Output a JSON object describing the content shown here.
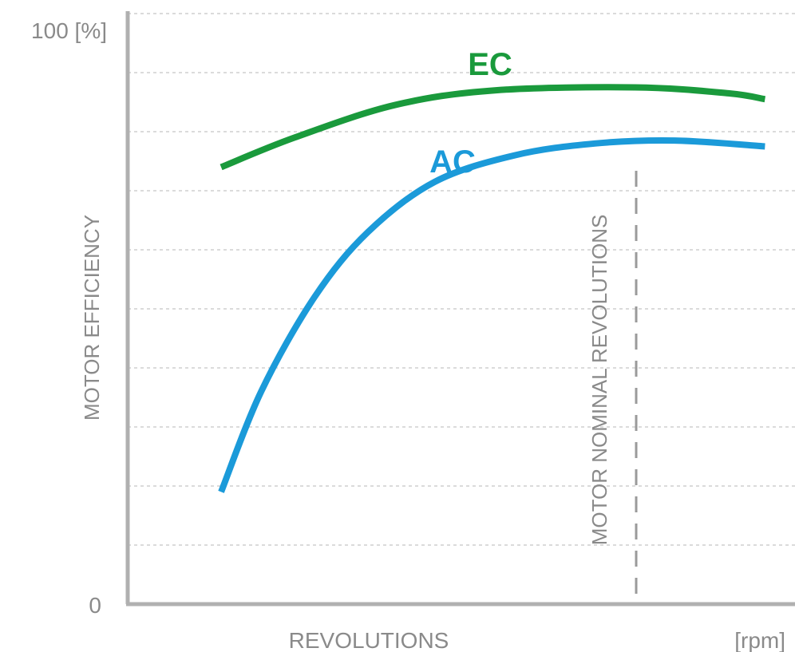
{
  "chart_data": {
    "type": "line",
    "title": "",
    "xlabel": "REVOLUTIONS",
    "xunit": "[rpm]",
    "ylabel": "MOTOR EFFICIENCY",
    "y_top_label": "100 [%]",
    "y_bottom_label": "0",
    "ylim": [
      0,
      100
    ],
    "xlim": [
      0,
      100
    ],
    "grid": true,
    "gridlines_y": [
      10,
      20,
      30,
      40,
      50,
      60,
      70,
      80,
      90
    ],
    "series": [
      {
        "name": "EC",
        "color": "#1a9a3c",
        "points": [
          [
            14,
            74
          ],
          [
            25,
            79
          ],
          [
            40,
            84.5
          ],
          [
            55,
            87
          ],
          [
            76,
            87.5
          ],
          [
            90,
            86.5
          ],
          [
            95.5,
            85.5
          ]
        ]
      },
      {
        "name": "AC",
        "color": "#1b9ad9",
        "points": [
          [
            14,
            19
          ],
          [
            20,
            36
          ],
          [
            28,
            52
          ],
          [
            36,
            63
          ],
          [
            46,
            71.5
          ],
          [
            58,
            76
          ],
          [
            70,
            78
          ],
          [
            82,
            78.5
          ],
          [
            95.5,
            77.5
          ]
        ]
      }
    ],
    "annotations": [
      {
        "type": "vertical-dashed-line",
        "x": 76.2,
        "label": "MOTOR NOMINAL REVOLUTIONS",
        "color": "#9a9a9a"
      }
    ]
  }
}
